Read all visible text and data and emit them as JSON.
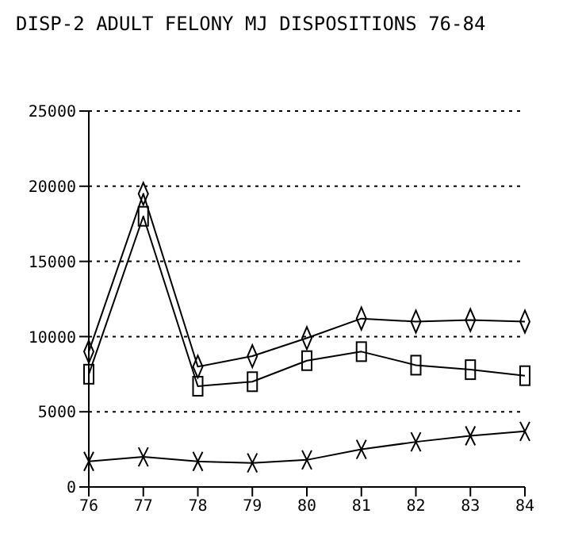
{
  "chart_data": {
    "type": "line",
    "title": "DISP-2  ADULT FELONY MJ DISPOSITIONS 76-84",
    "categories": [
      "76",
      "77",
      "78",
      "79",
      "80",
      "81",
      "82",
      "83",
      "84"
    ],
    "series": [
      {
        "color": "#000000",
        "marker": "diamond",
        "values": [
          9000,
          19500,
          8000,
          8700,
          9900,
          11200,
          11000,
          11100,
          11000
        ]
      },
      {
        "color": "#000000",
        "marker": "square",
        "values": [
          7500,
          18000,
          6700,
          7000,
          8400,
          9000,
          8100,
          7800,
          7400
        ]
      },
      {
        "color": "#000000",
        "marker": "cross",
        "values": [
          1700,
          2000,
          1700,
          1600,
          1800,
          2500,
          3000,
          3400,
          3700
        ]
      }
    ],
    "ylim": [
      0,
      25000
    ],
    "yticks": [
      0,
      5000,
      10000,
      15000,
      20000,
      25000
    ],
    "grid": "y",
    "legend": false
  }
}
